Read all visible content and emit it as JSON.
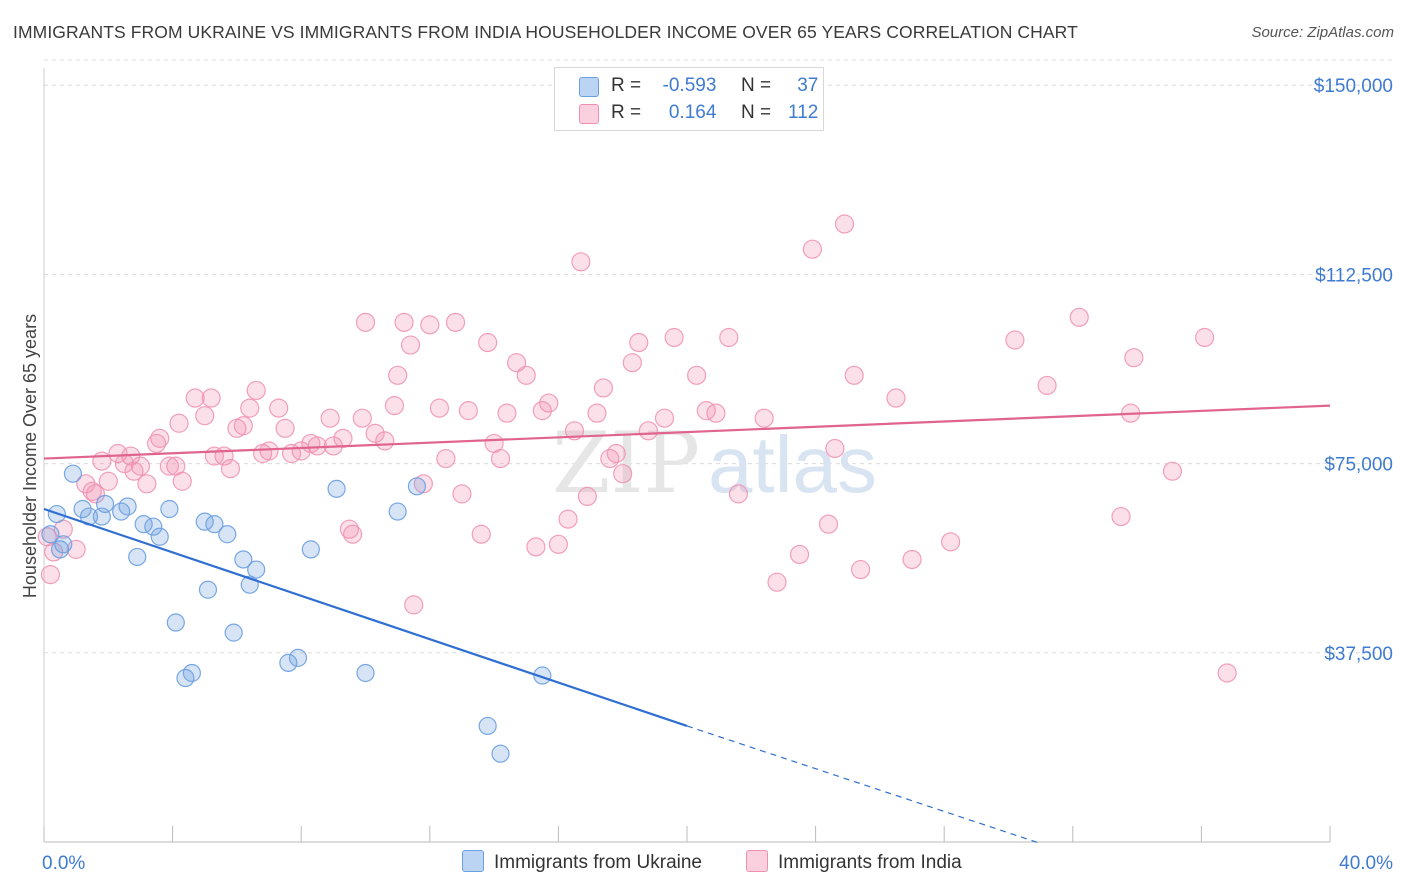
{
  "title": "IMMIGRANTS FROM UKRAINE VS IMMIGRANTS FROM INDIA HOUSEHOLDER INCOME OVER 65 YEARS CORRELATION CHART",
  "source": "Source: ZipAtlas.com",
  "watermark": {
    "zip": "ZIP",
    "atlas": "atlas"
  },
  "legend": {
    "ukraine": {
      "r_label": "R =",
      "r_value": "-0.593",
      "n_label": "N =",
      "n_value": "37"
    },
    "india": {
      "r_label": "R =",
      "r_value": "0.164",
      "n_label": "N =",
      "n_value": "112"
    }
  },
  "chart_data": {
    "type": "scatter",
    "title": "IMMIGRANTS FROM UKRAINE VS IMMIGRANTS FROM INDIA HOUSEHOLDER INCOME OVER 65 YEARS CORRELATION CHART",
    "xlabel": "",
    "ylabel": "Householder Income Over 65 years",
    "xlim": [
      0,
      40
    ],
    "ylim": [
      0,
      155000
    ],
    "x_tick_labels": [
      "0.0%",
      "40.0%"
    ],
    "y_ticks": [
      37500,
      75000,
      112500,
      150000
    ],
    "y_tick_labels": [
      "$37,500",
      "$75,000",
      "$112,500",
      "$150,000"
    ],
    "grid": true,
    "colors": {
      "ukraine": "#6a9fe0",
      "ukraine_line": "#2f6fd2",
      "india": "#f08fb0",
      "india_line": "#e0648f"
    },
    "series": [
      {
        "name": "Immigrants from Ukraine",
        "trend": {
          "x0": 0,
          "y0": 66000,
          "x1": 20,
          "y1": 23000,
          "dashed_to_x": 31,
          "dashed_to_y": -300
        },
        "points": [
          [
            0.4,
            65000
          ],
          [
            0.6,
            59000
          ],
          [
            0.9,
            73000
          ],
          [
            1.2,
            66000
          ],
          [
            1.4,
            64500
          ],
          [
            1.8,
            64500
          ],
          [
            1.9,
            67000
          ],
          [
            2.4,
            65500
          ],
          [
            2.6,
            66500
          ],
          [
            2.9,
            56500
          ],
          [
            3.1,
            63000
          ],
          [
            3.4,
            62500
          ],
          [
            3.6,
            60500
          ],
          [
            3.9,
            66000
          ],
          [
            4.1,
            43500
          ],
          [
            4.4,
            32500
          ],
          [
            4.6,
            33500
          ],
          [
            5.0,
            63500
          ],
          [
            5.1,
            50000
          ],
          [
            5.3,
            63000
          ],
          [
            5.7,
            61000
          ],
          [
            5.9,
            41500
          ],
          [
            6.2,
            56000
          ],
          [
            6.4,
            51000
          ],
          [
            6.6,
            54000
          ],
          [
            7.6,
            35500
          ],
          [
            7.9,
            36500
          ],
          [
            8.3,
            58000
          ],
          [
            9.1,
            70000
          ],
          [
            10.0,
            33500
          ],
          [
            11.0,
            65500
          ],
          [
            11.6,
            70500
          ],
          [
            13.8,
            23000
          ],
          [
            14.2,
            17500
          ],
          [
            15.5,
            33000
          ],
          [
            0.2,
            61000
          ],
          [
            0.5,
            58000
          ]
        ]
      },
      {
        "name": "Immigrants from India",
        "trend": {
          "x0": 0,
          "y0": 76000,
          "x1": 40,
          "y1": 86500
        },
        "points": [
          [
            0.2,
            53000
          ],
          [
            0.3,
            57500
          ],
          [
            0.6,
            62000
          ],
          [
            1.0,
            58000
          ],
          [
            1.3,
            71000
          ],
          [
            1.5,
            69500
          ],
          [
            1.8,
            75500
          ],
          [
            2.0,
            71500
          ],
          [
            2.3,
            77000
          ],
          [
            2.5,
            75000
          ],
          [
            2.8,
            73500
          ],
          [
            3.0,
            74500
          ],
          [
            3.2,
            71000
          ],
          [
            3.5,
            79000
          ],
          [
            3.6,
            80000
          ],
          [
            3.9,
            74500
          ],
          [
            4.1,
            74500
          ],
          [
            4.3,
            71500
          ],
          [
            4.2,
            83000
          ],
          [
            4.7,
            88000
          ],
          [
            5.0,
            84500
          ],
          [
            5.2,
            88000
          ],
          [
            5.3,
            76500
          ],
          [
            5.6,
            76500
          ],
          [
            5.8,
            74000
          ],
          [
            6.0,
            82000
          ],
          [
            6.2,
            82500
          ],
          [
            6.4,
            86000
          ],
          [
            6.6,
            89500
          ],
          [
            6.8,
            77000
          ],
          [
            7.0,
            77500
          ],
          [
            7.3,
            86000
          ],
          [
            7.5,
            82000
          ],
          [
            7.7,
            77000
          ],
          [
            8.0,
            77500
          ],
          [
            8.3,
            79000
          ],
          [
            8.5,
            78500
          ],
          [
            8.9,
            84000
          ],
          [
            9.0,
            78500
          ],
          [
            9.3,
            80000
          ],
          [
            9.5,
            62000
          ],
          [
            9.6,
            61000
          ],
          [
            9.9,
            84000
          ],
          [
            10.0,
            103000
          ],
          [
            10.3,
            81000
          ],
          [
            10.6,
            79500
          ],
          [
            10.9,
            86500
          ],
          [
            11.0,
            92500
          ],
          [
            11.2,
            103000
          ],
          [
            11.4,
            98500
          ],
          [
            11.5,
            47000
          ],
          [
            11.8,
            71000
          ],
          [
            12.0,
            102500
          ],
          [
            12.3,
            86000
          ],
          [
            12.5,
            76000
          ],
          [
            12.8,
            103000
          ],
          [
            13.0,
            69000
          ],
          [
            13.2,
            85500
          ],
          [
            13.6,
            61000
          ],
          [
            13.8,
            99000
          ],
          [
            14.0,
            79000
          ],
          [
            14.2,
            76000
          ],
          [
            14.4,
            85000
          ],
          [
            14.7,
            95000
          ],
          [
            15.0,
            92500
          ],
          [
            15.3,
            58500
          ],
          [
            15.5,
            85500
          ],
          [
            15.7,
            87000
          ],
          [
            16.0,
            59000
          ],
          [
            16.3,
            64000
          ],
          [
            16.5,
            81500
          ],
          [
            16.7,
            115000
          ],
          [
            16.9,
            68500
          ],
          [
            17.2,
            85000
          ],
          [
            17.4,
            90000
          ],
          [
            17.6,
            76000
          ],
          [
            17.8,
            77000
          ],
          [
            18.0,
            73000
          ],
          [
            18.3,
            95000
          ],
          [
            18.5,
            99000
          ],
          [
            18.8,
            81500
          ],
          [
            19.3,
            84000
          ],
          [
            19.6,
            100000
          ],
          [
            20.3,
            92500
          ],
          [
            20.6,
            85500
          ],
          [
            20.9,
            85000
          ],
          [
            21.3,
            100000
          ],
          [
            21.6,
            69000
          ],
          [
            22.4,
            84000
          ],
          [
            22.8,
            51500
          ],
          [
            23.5,
            57000
          ],
          [
            23.9,
            117500
          ],
          [
            24.4,
            63000
          ],
          [
            24.6,
            78000
          ],
          [
            24.9,
            122500
          ],
          [
            25.2,
            92500
          ],
          [
            25.4,
            54000
          ],
          [
            26.5,
            88000
          ],
          [
            27.0,
            56000
          ],
          [
            28.2,
            59500
          ],
          [
            30.2,
            99500
          ],
          [
            31.2,
            90500
          ],
          [
            32.2,
            104000
          ],
          [
            33.5,
            64500
          ],
          [
            33.8,
            85000
          ],
          [
            33.9,
            96000
          ],
          [
            35.1,
            73500
          ],
          [
            36.1,
            100000
          ],
          [
            36.8,
            33500
          ],
          [
            0.1,
            60500
          ],
          [
            1.6,
            69000
          ],
          [
            2.7,
            76500
          ]
        ]
      }
    ]
  },
  "bottom_legend": {
    "ukraine_label": "Immigrants from Ukraine",
    "india_label": "Immigrants from India"
  }
}
